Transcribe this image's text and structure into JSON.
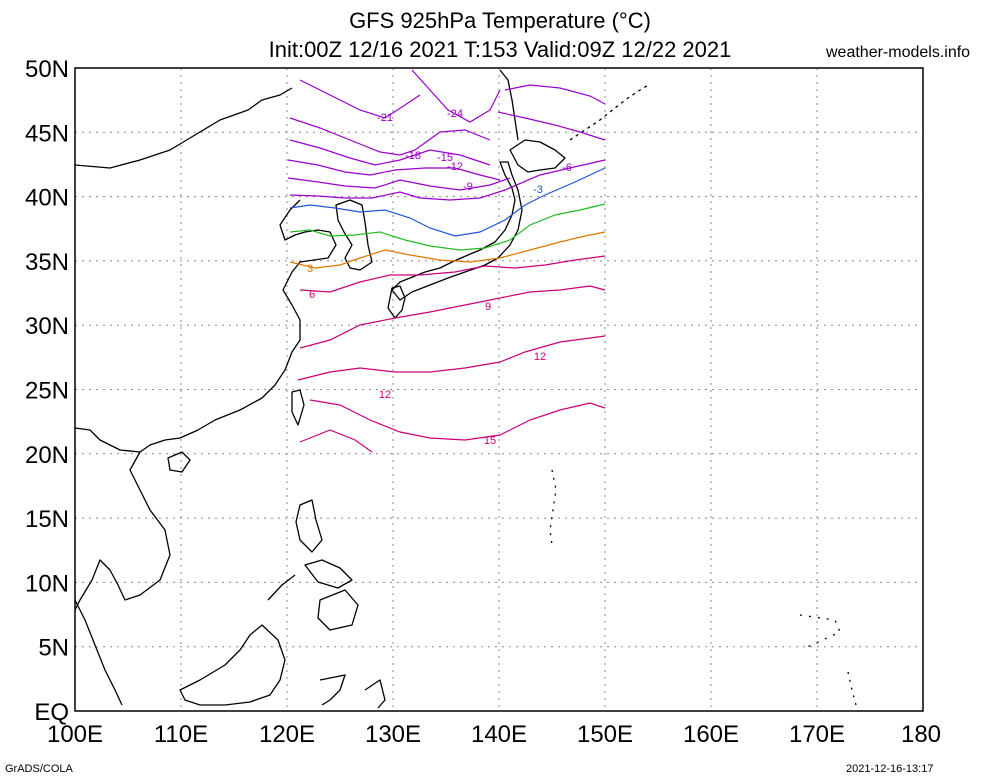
{
  "header": {
    "title_line1": "GFS 925hPa Temperature (°C)",
    "title_line2": "Init:00Z 12/16 2021 T:153 Valid:09Z 12/22 2021",
    "site": "weather-models.info"
  },
  "footer": {
    "left": "GrADS/COLA",
    "right": "2021-12-16-13:17"
  },
  "map": {
    "lat_labels": [
      "50N",
      "45N",
      "40N",
      "35N",
      "30N",
      "25N",
      "20N",
      "15N",
      "10N",
      "5N",
      "EQ"
    ],
    "lon_labels": [
      "100E",
      "110E",
      "120E",
      "130E",
      "140E",
      "150E",
      "160E",
      "170E",
      "180"
    ],
    "grid": "dotted",
    "colors": {
      "frame": "#000000",
      "coastline": "#000000",
      "cold": "#9900cc",
      "minus3": "#2255dd",
      "zero": "#22bb22",
      "plus3": "#dd7700",
      "warm": "#cc0077"
    },
    "contour_labels": [
      "-24",
      "-21",
      "-18",
      "-15",
      "-12",
      "-9",
      "-6",
      "-3",
      "3",
      "6",
      "9",
      "12",
      "15"
    ]
  }
}
